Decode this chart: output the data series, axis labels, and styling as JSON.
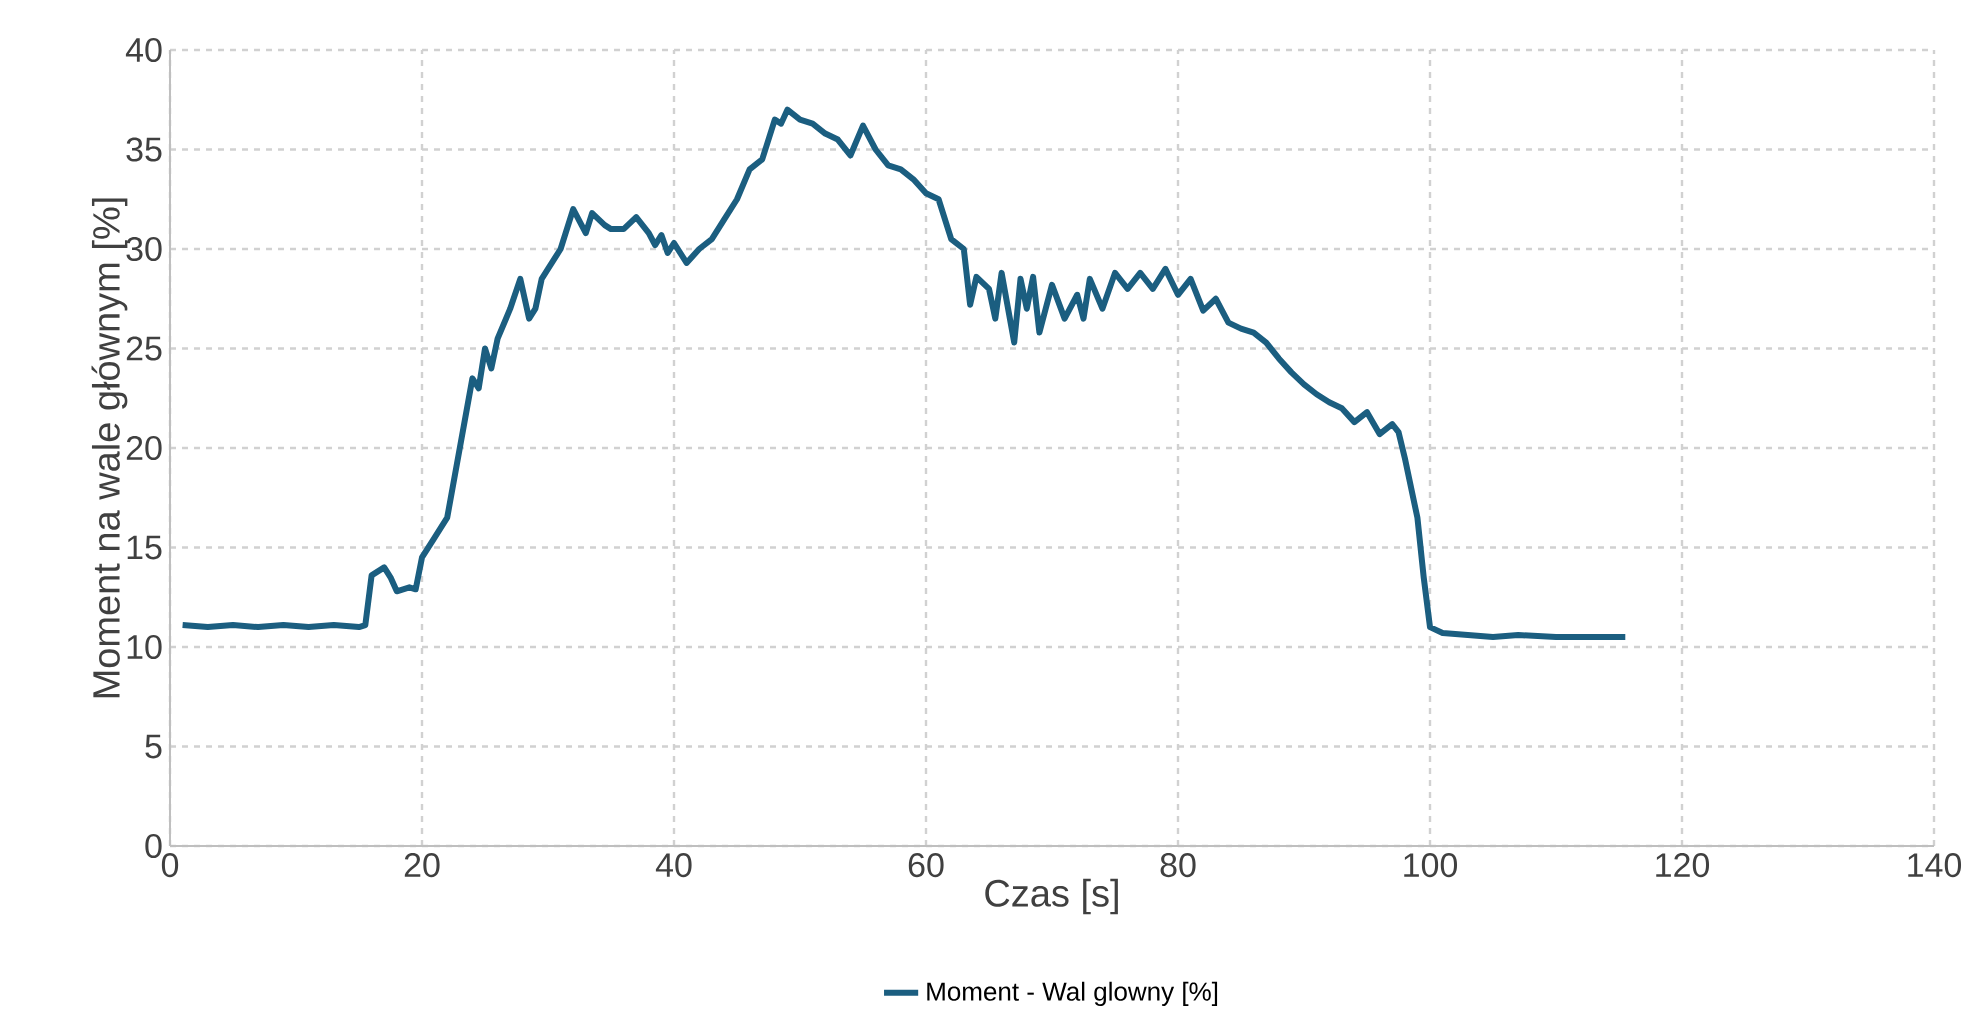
{
  "chart_data": {
    "type": "line",
    "xlabel": "Czas  [s]",
    "ylabel": "Moment na wale głównym [%]",
    "xlim": [
      0,
      140
    ],
    "xticks": [
      0,
      20,
      40,
      60,
      80,
      100,
      120,
      140
    ],
    "ylim": [
      0,
      40
    ],
    "yticks": [
      0,
      5,
      10,
      15,
      20,
      25,
      30,
      35,
      40
    ],
    "grid": true,
    "legend": "bottom",
    "marker": "none",
    "line_style": "solid",
    "series": [
      {
        "name": "Moment - Wal glowny [%]",
        "color": "#1b5e80",
        "x": [
          1,
          3,
          5,
          7,
          9,
          11,
          13,
          15,
          15.5,
          16,
          17,
          17.5,
          18,
          19,
          19.5,
          20,
          21,
          22,
          23,
          24,
          24.5,
          25,
          25.5,
          26,
          27,
          27.8,
          28.5,
          29,
          29.5,
          30,
          31,
          32,
          33,
          33.5,
          34.5,
          35,
          36,
          37,
          38,
          38.5,
          39,
          39.5,
          40,
          41,
          42,
          43,
          44,
          45,
          46,
          47,
          48,
          48.5,
          49,
          50,
          51,
          52,
          53,
          54,
          55,
          56,
          57,
          58,
          59,
          60,
          61,
          62,
          63,
          63.5,
          64,
          65,
          65.5,
          66,
          67,
          67.5,
          68,
          68.5,
          69,
          70,
          71,
          72,
          72.5,
          73,
          74,
          75,
          76,
          77,
          78,
          79,
          80,
          81,
          82,
          83,
          84,
          85,
          86,
          87,
          88,
          89,
          90,
          91,
          92,
          93,
          94,
          95,
          96,
          97,
          97.5,
          98,
          99,
          99.5,
          100,
          101,
          103,
          105,
          107,
          110,
          113,
          115.5
        ],
        "values": [
          11.1,
          11.0,
          11.1,
          11.0,
          11.1,
          11.0,
          11.1,
          11.0,
          11.1,
          13.6,
          14.0,
          13.5,
          12.8,
          13.0,
          12.9,
          14.5,
          15.5,
          16.5,
          20,
          23.5,
          23.0,
          25.0,
          24.0,
          25.5,
          27.0,
          28.5,
          26.5,
          27.0,
          28.5,
          29.0,
          30.0,
          32.0,
          30.8,
          31.8,
          31.2,
          31.0,
          31.0,
          31.6,
          30.8,
          30.2,
          30.7,
          29.8,
          30.3,
          29.3,
          30.0,
          30.5,
          31.5,
          32.5,
          34.0,
          34.5,
          36.5,
          36.3,
          37.0,
          36.5,
          36.3,
          35.8,
          35.5,
          34.7,
          36.2,
          35.0,
          34.2,
          34.0,
          33.5,
          32.8,
          32.5,
          30.5,
          30.0,
          27.2,
          28.6,
          28.0,
          26.5,
          28.8,
          25.3,
          28.5,
          27.0,
          28.6,
          25.8,
          28.2,
          26.5,
          27.7,
          26.5,
          28.5,
          27.0,
          28.8,
          28.0,
          28.8,
          28.0,
          29.0,
          27.7,
          28.5,
          26.9,
          27.5,
          26.3,
          26.0,
          25.8,
          25.3,
          24.5,
          23.8,
          23.2,
          22.7,
          22.3,
          22.0,
          21.3,
          21.8,
          20.7,
          21.2,
          20.8,
          19.5,
          16.5,
          13.5,
          11.0,
          10.7,
          10.6,
          10.5,
          10.6,
          10.5,
          10.5,
          10.5
        ]
      }
    ]
  }
}
